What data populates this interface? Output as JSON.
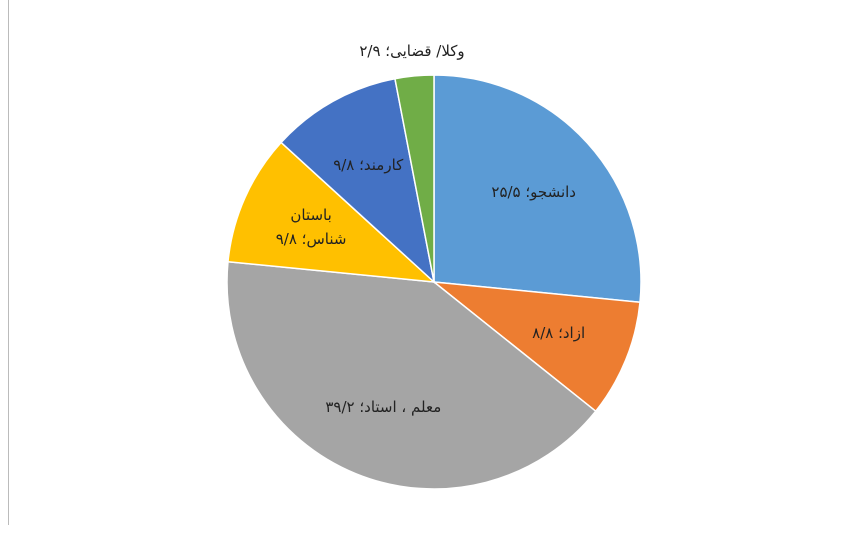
{
  "chart_data": {
    "type": "pie",
    "values": [
      25.5,
      8.8,
      39.2,
      9.8,
      9.8,
      2.9
    ],
    "value_labels": [
      "دانشجو؛ ۲۵/۵",
      "ازاد؛ ۸/۸",
      "معلم ، استاد؛ ۳۹/۲",
      "باستان شناس؛ ۹/۸",
      "کارمند؛ ۹/۸",
      "وکلا/ قضایی؛ ۲/۹"
    ],
    "colors": [
      "#5b9bd5",
      "#ed7d31",
      "#a5a5a5",
      "#ffc000",
      "#4472c4",
      "#70ad47"
    ]
  }
}
